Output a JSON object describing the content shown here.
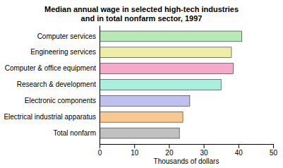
{
  "chart_data": {
    "type": "bar",
    "orientation": "horizontal",
    "title": "Median annual wage in selected high-tech industries\nand in total nonfarm sector, 1997",
    "categories": [
      "Computer services",
      "Engineering services",
      "Computer & office equipment",
      "Research & development",
      "Electronic components",
      "Electrical industrial apparatus",
      "Total nonfarm"
    ],
    "values": [
      41,
      38,
      38.5,
      35,
      26,
      24,
      23
    ],
    "colors": [
      "#b8e8b8",
      "#eeeeaa",
      "#f4aac8",
      "#aaeedd",
      "#c0c0ee",
      "#f8c890",
      "#c0c0c0"
    ],
    "xlabel": "Thousands of dollars",
    "xlim": [
      0,
      50
    ],
    "xticks": [
      0,
      10,
      20,
      30,
      40,
      50
    ],
    "grid": false
  }
}
